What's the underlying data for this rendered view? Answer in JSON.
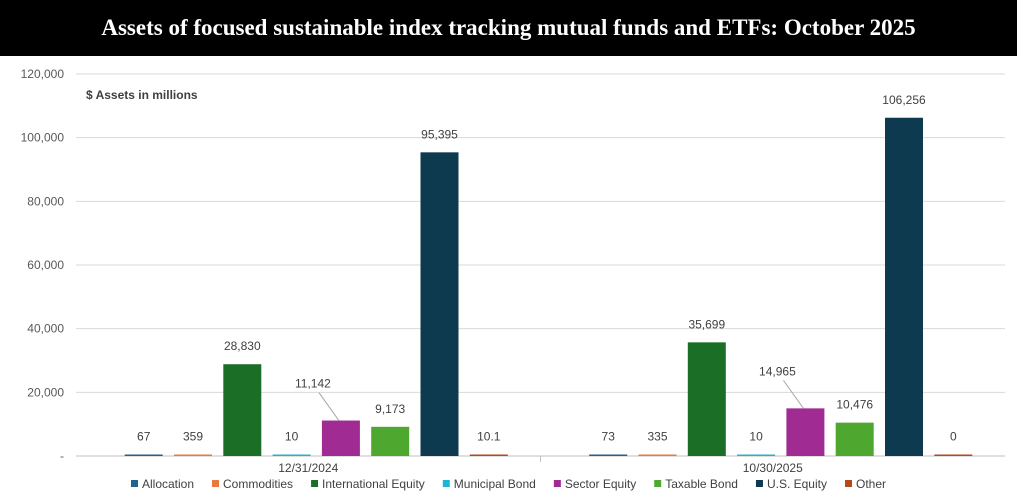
{
  "title": "Assets of focused sustainable index tracking mutual funds and ETFs: October 2025",
  "chart_data": {
    "type": "bar",
    "unit_label": "$ Assets in millions",
    "categories": [
      "12/31/2024",
      "10/30/2025"
    ],
    "ylim": [
      0,
      120000
    ],
    "yticks": [
      0,
      20000,
      40000,
      60000,
      80000,
      100000,
      120000
    ],
    "ytick_labels": [
      "-",
      "20,000",
      "40,000",
      "60,000",
      "80,000",
      "100,000",
      "120,000"
    ],
    "grid": true,
    "legend_position": "bottom",
    "series": [
      {
        "name": "Allocation",
        "color": "#1f6391",
        "values": [
          67,
          73
        ],
        "labels": [
          "67",
          "73"
        ]
      },
      {
        "name": "Commodities",
        "color": "#e87a3d",
        "values": [
          359,
          335
        ],
        "labels": [
          "359",
          "335"
        ]
      },
      {
        "name": "International Equity",
        "color": "#1b6e26",
        "values": [
          28830,
          35699
        ],
        "labels": [
          "28,830",
          "35,699"
        ]
      },
      {
        "name": "Municipal Bond",
        "color": "#1fb4d2",
        "values": [
          10,
          10
        ],
        "labels": [
          "10",
          "10"
        ]
      },
      {
        "name": "Sector Equity",
        "color": "#a02b93",
        "values": [
          11142,
          14965
        ],
        "labels": [
          "11,142",
          "14,965"
        ]
      },
      {
        "name": "Taxable Bond",
        "color": "#4ea72e",
        "values": [
          9173,
          10476
        ],
        "labels": [
          "9,173",
          "10,476"
        ]
      },
      {
        "name": "U.S. Equity",
        "color": "#0e3a4f",
        "values": [
          95395,
          106256
        ],
        "labels": [
          "95,395",
          "106,256"
        ]
      },
      {
        "name": "Other",
        "color": "#b5481b",
        "values": [
          10.1,
          0
        ],
        "labels": [
          "10.1",
          "0"
        ]
      }
    ]
  }
}
